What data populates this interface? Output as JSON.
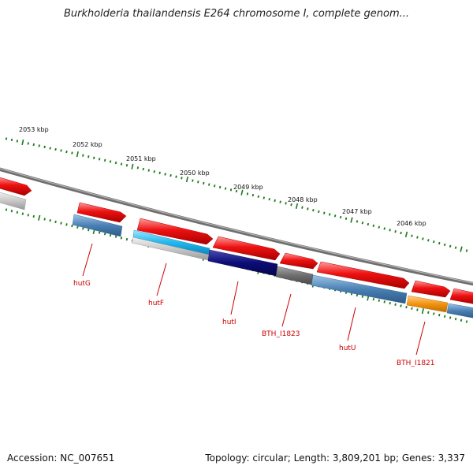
{
  "title": "Burkholderia thailandensis E264 chromosome I, complete genom...",
  "accession": "Accession: NC_007651",
  "summary": "Topology: circular; Length: 3,809,201 bp; Genes: 3,337",
  "colors": {
    "cds_red": "#ee1111",
    "steel_blue": "#4a80b4",
    "light_gray": "#c8c8c8",
    "cyan": "#22b8ee",
    "navy": "#0c0c78",
    "dark_gray": "#6e6e6e",
    "orange": "#f29410",
    "tick_green": "#1a7a1a",
    "label_red": "#cc0000"
  },
  "scale": {
    "ticks": [
      "2053 kbp",
      "2052 kbp",
      "2051 kbp",
      "2050 kbp",
      "2049 kbp",
      "2048 kbp",
      "2047 kbp",
      "2046 kbp"
    ]
  },
  "genes": {
    "hutG": "hutG",
    "hutF": "hutF",
    "hutI": "hutI",
    "bth1823": "BTH_I1823",
    "hutU": "hutU",
    "bth1821": "BTH_I1821"
  }
}
